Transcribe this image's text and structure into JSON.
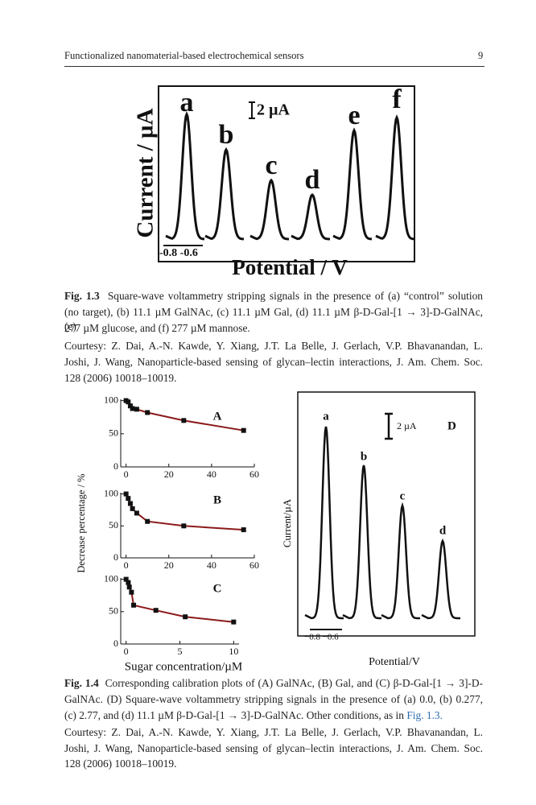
{
  "header": {
    "title": "Functionalized nanomaterial-based electrochemical sensors",
    "page": "9"
  },
  "figure_1_3": {
    "labels": [
      "a",
      "b",
      "c",
      "d",
      "e",
      "f"
    ],
    "y_label": "Current / µA",
    "x_label": "Potential / V",
    "scale": "2 µA",
    "x_scale": "-0.8 -0.6"
  },
  "caption_1_3": {
    "label": "Fig. 1.3",
    "lines": [
      "Square-wave voltammetry stripping signals in the presence of (a) “control” solution",
      "(no target), (b) 11.1 µM GalNAc, (c) 11.1 µM Gal, (d) 11.1 µM β-D-Gal-[1 → 3]-D-GalNAc, (e)",
      "277 µM glucose, and (f) 277 µM mannose."
    ],
    "courtesy": [
      "Courtesy: Z. Dai, A.-N. Kawde, Y. Xiang, J.T. La Belle, J. Gerlach, V.P. Bhavanandan, L.",
      "Joshi, J. Wang, Nanoparticle-based sensing of glycan–lectin interactions, J. Am. Chem. Soc.",
      "128 (2006) 10018–10019."
    ]
  },
  "figure_1_4": {
    "y_label": "Decrease percentage / %",
    "x_label": "Sugar concentration/µM",
    "panels": [
      {
        "name": "A",
        "x": [
          0,
          1,
          2,
          3,
          5,
          10,
          27,
          55
        ],
        "values": [
          100,
          98,
          92,
          88,
          87,
          82,
          70,
          55
        ],
        "xlim": [
          -2.5,
          60
        ],
        "ylim": [
          0,
          102
        ],
        "xticks": [
          0,
          20,
          40,
          60
        ],
        "yticks": [
          0,
          50,
          100
        ]
      },
      {
        "name": "B",
        "x": [
          0,
          1,
          2,
          3,
          5,
          10,
          27,
          55
        ],
        "values": [
          100,
          93,
          85,
          77,
          70,
          57,
          50,
          44
        ],
        "xlim": [
          -2.5,
          60
        ],
        "ylim": [
          0,
          102
        ],
        "xticks": [
          0,
          20,
          40,
          60
        ],
        "yticks": [
          0,
          50,
          100
        ]
      },
      {
        "name": "C",
        "x": [
          0,
          0.2,
          0.3,
          0.5,
          0.7,
          2.77,
          5.5,
          10
        ],
        "values": [
          100,
          95,
          88,
          80,
          60,
          52,
          42,
          34
        ],
        "xlim": [
          -0.5,
          10.5
        ],
        "ylim": [
          0,
          102
        ],
        "xticks": [
          0,
          5,
          10
        ],
        "yticks": [
          0,
          50,
          100
        ]
      }
    ],
    "d": {
      "name": "D",
      "labels": [
        "a",
        "b",
        "c",
        "d"
      ],
      "y_label": "Current/µA",
      "x_label": "Potential/V",
      "scale": "2 µA",
      "x_scale": "−0.8 −0.6"
    }
  },
  "caption_1_4": {
    "label": "Fig. 1.4",
    "lines": [
      "Corresponding calibration plots of (A) GalNAc, (B) Gal, and (C) β-D-Gal-[1 → 3]-D-",
      "GalNAc. (D) Square-wave voltammetry stripping signals in the presence of (a) 0.0, (b) 0.277,",
      "(c) 2.77, and (d) 11.1 µM β-D-Gal-[1 → 3]-D-GalNAc. Other conditions, as in "
    ],
    "ref": "Fig. 1.3.",
    "courtesy": [
      "Courtesy: Z. Dai, A.-N. Kawde, Y. Xiang, J.T. La Belle, J. Gerlach, V.P. Bhavanandan, L.",
      "Joshi, J. Wang, Nanoparticle-based sensing of glycan–lectin interactions, J. Am. Chem. Soc.",
      "128 (2006) 10018–10019."
    ]
  }
}
